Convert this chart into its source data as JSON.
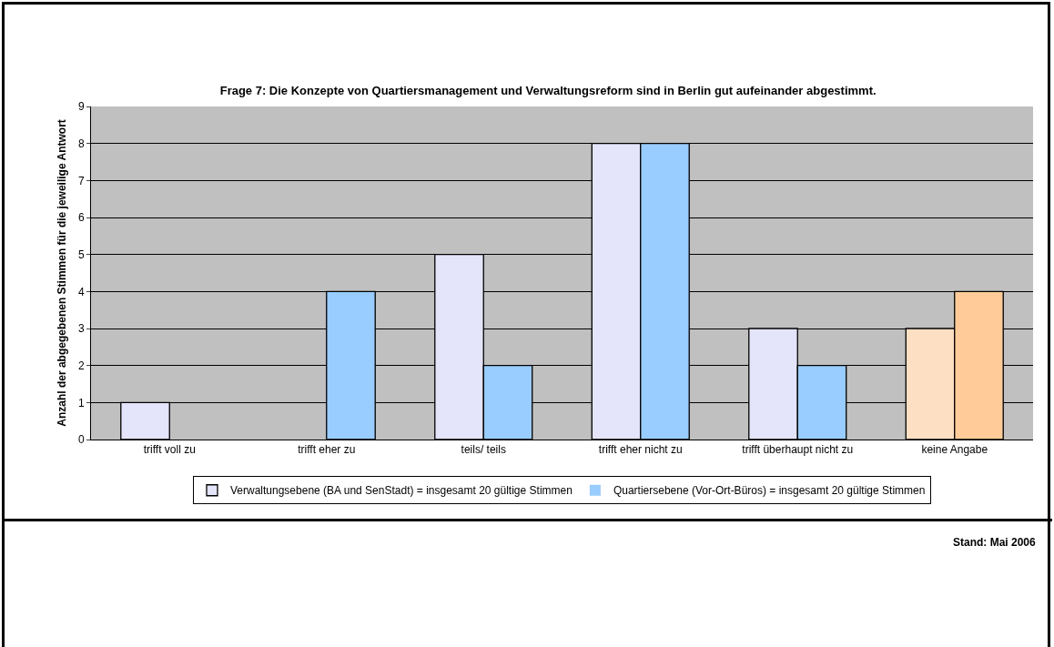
{
  "chart_data": {
    "type": "bar",
    "title": "Frage 7: Die Konzepte von Quartiersmanagement und Verwaltungsreform sind in Berlin gut aufeinander abgestimmt.",
    "ylabel": "Anzahl der abgegebenen Stimmen für die jeweilige Antwort",
    "categories": [
      "trifft voll zu",
      "trifft eher zu",
      "teils/ teils",
      "trifft eher nicht zu",
      "trifft überhaupt nicht zu",
      "keine Angabe"
    ],
    "series": [
      {
        "name": "Verwaltungsebene (BA und SenStadt) = insgesamt 20 gültige Stimmen",
        "colors": [
          "#e4e4fb",
          "#e4e4fb",
          "#e4e4fb",
          "#e4e4fb",
          "#e4e4fb",
          "#fde0c4"
        ],
        "values": [
          1,
          0,
          5,
          8,
          3,
          3
        ]
      },
      {
        "name": "Quartiersebene (Vor-Ort-Büros) = insgesamt 20 gültige Stimmen",
        "colors": [
          "#99ccff",
          "#99ccff",
          "#99ccff",
          "#99ccff",
          "#99ccff",
          "#ffcc99"
        ],
        "values": [
          0,
          4,
          2,
          8,
          2,
          4
        ]
      }
    ],
    "ylim": [
      0,
      9
    ],
    "yticks": [
      0,
      1,
      2,
      3,
      4,
      5,
      6,
      7,
      8,
      9
    ],
    "grid": "y",
    "legend": "bottom",
    "annotations": [
      "Stand: Mai 2006"
    ]
  }
}
